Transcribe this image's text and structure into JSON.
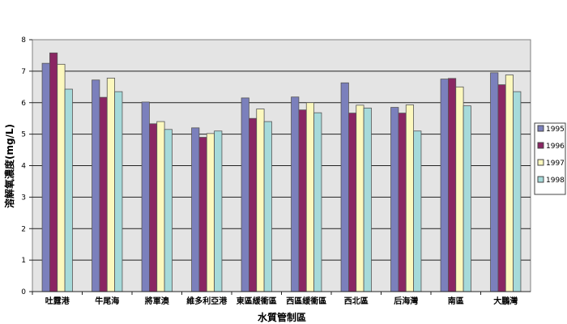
{
  "chart_data": {
    "type": "bar",
    "title": "",
    "xlabel": "水質管制區",
    "ylabel": "溶解氧濃度(mg/L)",
    "ylim": [
      0,
      8
    ],
    "yticks": [
      0,
      1,
      2,
      3,
      4,
      5,
      6,
      7,
      8
    ],
    "grid": true,
    "legend_position": "right",
    "categories": [
      "吐露港",
      "牛尾海",
      "將軍澳",
      "維多利亞港",
      "東區緩衝區",
      "西區緩衝區",
      "西北區",
      "后海灣",
      "南區",
      "大鵬灣"
    ],
    "series": [
      {
        "name": "1995",
        "color": "#7B80BC",
        "values": [
          7.25,
          6.72,
          6.02,
          5.2,
          6.15,
          6.18,
          6.63,
          5.85,
          6.75,
          6.95
        ]
      },
      {
        "name": "1996",
        "color": "#8A2663",
        "values": [
          7.58,
          6.17,
          5.33,
          4.9,
          5.5,
          5.77,
          5.67,
          5.67,
          6.77,
          6.57
        ]
      },
      {
        "name": "1997",
        "color": "#FCF8BE",
        "values": [
          7.22,
          6.78,
          5.4,
          5.02,
          5.8,
          6.0,
          5.92,
          5.93,
          6.5,
          6.88
        ]
      },
      {
        "name": "1998",
        "color": "#A6DADA",
        "values": [
          6.43,
          6.35,
          5.15,
          5.1,
          5.4,
          5.68,
          5.83,
          5.1,
          5.9,
          6.35
        ]
      }
    ],
    "plot_background": "#E4E4E4"
  }
}
